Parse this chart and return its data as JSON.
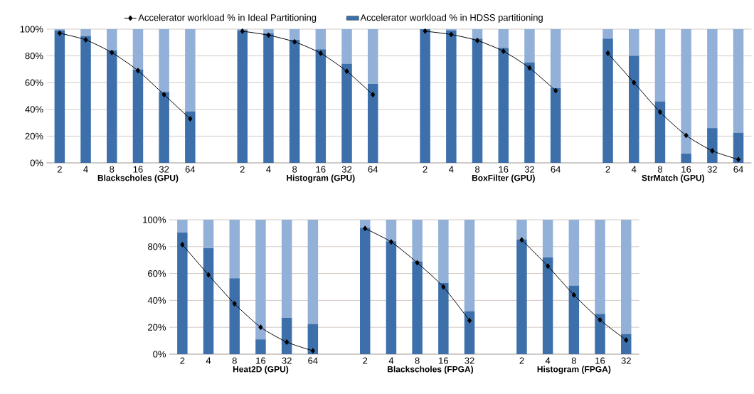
{
  "chart_data": [
    {
      "type": "bar",
      "stacked": true,
      "xlabel": "Blackscholes (GPU)",
      "categories": [
        "2",
        "4",
        "8",
        "16",
        "32",
        "64"
      ],
      "ylim": [
        0,
        100
      ],
      "yticks": [
        {
          "value": 0,
          "label": "0%"
        },
        {
          "value": 20,
          "label": "20%"
        },
        {
          "value": 40,
          "label": "40%"
        },
        {
          "value": 60,
          "label": "60%"
        },
        {
          "value": 80,
          "label": "80%"
        },
        {
          "value": 100,
          "label": "100%"
        }
      ],
      "grid": "y",
      "legend": "top",
      "series": [
        {
          "name": "Accelerator workload % in HDSS partitioning",
          "color": "#3d70ab",
          "values": [
            99,
            95,
            84,
            70,
            53,
            38.5
          ]
        },
        {
          "color": "#93b1d8",
          "values": [
            1,
            5,
            16,
            30,
            47,
            61.5
          ]
        },
        {
          "type": "line",
          "name": "Accelerator workload % in Ideal Partitioning",
          "color": "#000000",
          "marker": "diamond",
          "values": [
            97,
            92,
            82.5,
            69,
            51,
            33
          ]
        }
      ]
    },
    {
      "type": "bar",
      "stacked": true,
      "xlabel": "Histogram (GPU)",
      "categories": [
        "2",
        "4",
        "8",
        "16",
        "32",
        "64"
      ],
      "ylim": [
        0,
        100
      ],
      "grid": "y",
      "tick_labels": "x",
      "series": [
        {
          "color": "#3d70ab",
          "values": [
            99,
            97,
            92,
            85,
            74,
            59
          ]
        },
        {
          "color": "#93b1d8",
          "values": [
            1,
            3,
            8,
            15,
            26,
            41
          ]
        },
        {
          "type": "line",
          "color": "#000000",
          "marker": "diamond",
          "values": [
            98.5,
            95.5,
            90.5,
            82,
            68.5,
            51
          ]
        }
      ]
    },
    {
      "type": "bar",
      "stacked": true,
      "xlabel": "BoxFilter (GPU)",
      "categories": [
        "2",
        "4",
        "8",
        "16",
        "32",
        "64"
      ],
      "ylim": [
        0,
        100
      ],
      "grid": "y",
      "tick_labels": "x",
      "series": [
        {
          "color": "#3d70ab",
          "values": [
            100,
            99,
            93,
            86,
            75,
            56
          ]
        },
        {
          "color": "#93b1d8",
          "values": [
            0,
            1,
            7,
            14,
            25,
            44
          ]
        },
        {
          "type": "line",
          "color": "#000000",
          "marker": "diamond",
          "values": [
            98.5,
            96,
            91.5,
            83.5,
            71,
            54
          ]
        }
      ]
    },
    {
      "type": "bar",
      "stacked": true,
      "xlabel": "StrMatch (GPU)",
      "categories": [
        "2",
        "4",
        "8",
        "16",
        "32",
        "64"
      ],
      "ylim": [
        0,
        100
      ],
      "grid": "y",
      "tick_labels": "x",
      "series": [
        {
          "color": "#3d70ab",
          "values": [
            93,
            80,
            46,
            7,
            26,
            22.5
          ]
        },
        {
          "color": "#93b1d8",
          "values": [
            7,
            20,
            54,
            93,
            74,
            77.5
          ]
        },
        {
          "type": "line",
          "color": "#000000",
          "marker": "diamond",
          "values": [
            82,
            60,
            38,
            20.5,
            9,
            2.5
          ]
        }
      ]
    },
    {
      "type": "bar",
      "stacked": true,
      "xlabel": "Heat2D (GPU)",
      "categories": [
        "2",
        "4",
        "8",
        "16",
        "32",
        "64"
      ],
      "ylim": [
        0,
        100
      ],
      "yticks": [
        {
          "value": 0,
          "label": "0%"
        },
        {
          "value": 20,
          "label": "20%"
        },
        {
          "value": 40,
          "label": "40%"
        },
        {
          "value": 60,
          "label": "60%"
        },
        {
          "value": 80,
          "label": "80%"
        },
        {
          "value": 100,
          "label": "100%"
        }
      ],
      "grid": "y",
      "series": [
        {
          "color": "#3d70ab",
          "values": [
            90.5,
            79,
            56.5,
            11,
            27,
            22.5
          ]
        },
        {
          "color": "#93b1d8",
          "values": [
            9.5,
            21,
            43.5,
            89,
            73,
            77.5
          ]
        },
        {
          "type": "line",
          "color": "#000000",
          "marker": "diamond",
          "values": [
            81.5,
            59,
            37.5,
            20,
            9,
            2.5
          ]
        }
      ]
    },
    {
      "type": "bar",
      "stacked": true,
      "xlabel": "Blackscholes (FPGA)",
      "categories": [
        "2",
        "4",
        "8",
        "16",
        "32"
      ],
      "ylim": [
        0,
        100
      ],
      "grid": "y",
      "tick_labels": "x",
      "series": [
        {
          "color": "#3d70ab",
          "values": [
            94,
            84,
            69,
            53,
            32
          ]
        },
        {
          "color": "#93b1d8",
          "values": [
            6,
            16,
            31,
            47,
            68
          ]
        },
        {
          "type": "line",
          "color": "#000000",
          "marker": "diamond",
          "values": [
            93.5,
            83.5,
            68,
            50,
            25
          ]
        }
      ]
    },
    {
      "type": "bar",
      "stacked": true,
      "xlabel": "Histogram (FPGA)",
      "categories": [
        "2",
        "4",
        "8",
        "16",
        "32"
      ],
      "ylim": [
        0,
        100
      ],
      "grid": "y",
      "tick_labels": "x",
      "series": [
        {
          "color": "#3d70ab",
          "values": [
            85.5,
            72,
            51,
            30,
            15
          ]
        },
        {
          "color": "#93b1d8",
          "values": [
            14.5,
            28,
            49,
            70,
            85
          ]
        },
        {
          "type": "line",
          "color": "#000000",
          "marker": "diamond",
          "values": [
            85,
            65.5,
            44,
            25.5,
            10.5
          ]
        }
      ]
    }
  ]
}
